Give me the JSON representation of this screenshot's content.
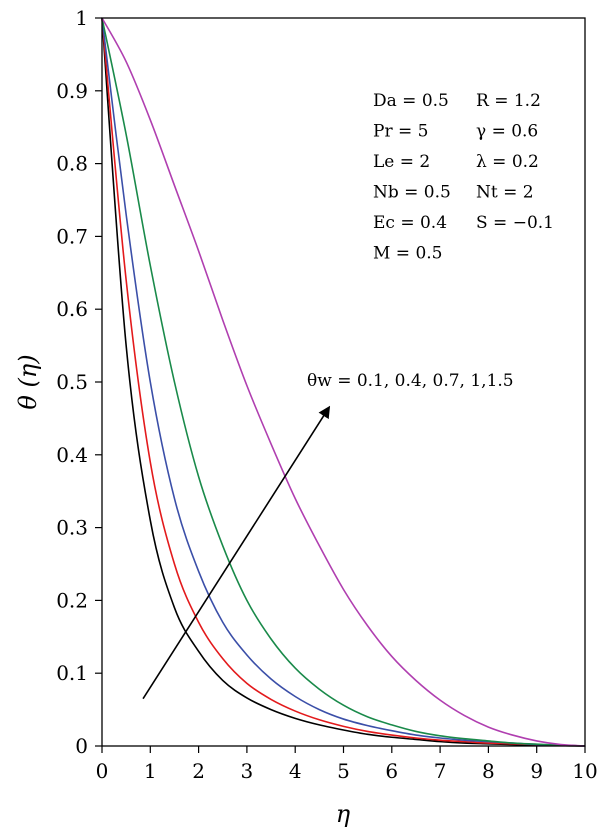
{
  "chart_data": {
    "type": "line",
    "title": "",
    "xlabel": "η",
    "ylabel": "θ (η)",
    "xlim": [
      0,
      10
    ],
    "ylim": [
      0,
      1
    ],
    "xticks": [
      "0",
      "1",
      "2",
      "3",
      "4",
      "5",
      "6",
      "7",
      "8",
      "9",
      "10"
    ],
    "yticks": [
      "0",
      "0.1",
      "0.2",
      "0.3",
      "0.4",
      "0.5",
      "0.6",
      "0.7",
      "0.8",
      "0.9",
      "1"
    ],
    "grid": false,
    "x": [
      0,
      0.5,
      1,
      1.5,
      2,
      2.5,
      3,
      3.5,
      4,
      4.5,
      5,
      5.5,
      6,
      6.5,
      7,
      7.5,
      8,
      8.5,
      9,
      9.5,
      10
    ],
    "series": [
      {
        "color": "#000000",
        "values": [
          1,
          0.55,
          0.31,
          0.19,
          0.13,
          0.09,
          0.066,
          0.05,
          0.038,
          0.029,
          0.022,
          0.016,
          0.012,
          0.009,
          0.006,
          0.004,
          0.003,
          0.002,
          0.001,
          0.0005,
          0
        ]
      },
      {
        "color": "#e31a1c",
        "values": [
          1,
          0.64,
          0.39,
          0.25,
          0.17,
          0.12,
          0.086,
          0.064,
          0.048,
          0.036,
          0.027,
          0.02,
          0.015,
          0.011,
          0.008,
          0.006,
          0.004,
          0.003,
          0.002,
          0.001,
          0
        ]
      },
      {
        "color": "#3b4fa8",
        "values": [
          1,
          0.73,
          0.5,
          0.34,
          0.24,
          0.17,
          0.125,
          0.092,
          0.068,
          0.05,
          0.037,
          0.028,
          0.021,
          0.015,
          0.011,
          0.008,
          0.006,
          0.004,
          0.002,
          0.001,
          0
        ]
      },
      {
        "color": "#1a8a4a",
        "values": [
          1,
          0.84,
          0.66,
          0.5,
          0.37,
          0.275,
          0.2,
          0.147,
          0.107,
          0.078,
          0.056,
          0.04,
          0.029,
          0.02,
          0.014,
          0.01,
          0.007,
          0.004,
          0.0025,
          0.001,
          0
        ]
      },
      {
        "color": "#b03fb0",
        "values": [
          1,
          0.94,
          0.86,
          0.77,
          0.68,
          0.585,
          0.495,
          0.415,
          0.34,
          0.275,
          0.215,
          0.165,
          0.123,
          0.09,
          0.063,
          0.042,
          0.026,
          0.015,
          0.007,
          0.002,
          0
        ]
      }
    ],
    "parameters": [
      [
        "Da = 0.5",
        "R = 1.2"
      ],
      [
        "Pr = 5",
        "γ = 0.6"
      ],
      [
        "Le = 2",
        "λ = 0.2"
      ],
      [
        "Nb = 0.5",
        "Nt = 2"
      ],
      [
        "Ec = 0.4",
        "S = −0.1"
      ],
      [
        "M = 0.5",
        ""
      ]
    ],
    "annotation": {
      "text": "θw = 0.1, 0.4, 0.7, 1,1.5",
      "arrow_from": [
        0.85,
        0.065
      ],
      "arrow_to": [
        4.7,
        0.465
      ]
    }
  }
}
